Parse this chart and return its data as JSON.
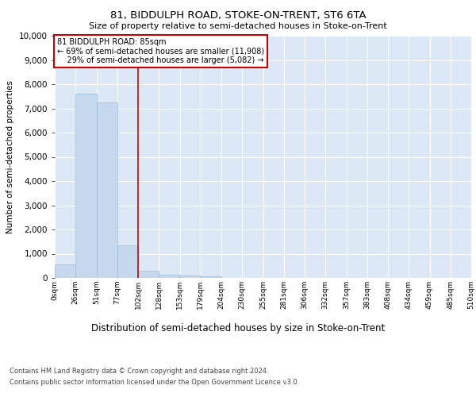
{
  "title": "81, BIDDULPH ROAD, STOKE-ON-TRENT, ST6 6TA",
  "subtitle": "Size of property relative to semi-detached houses in Stoke-on-Trent",
  "xlabel": "Distribution of semi-detached houses by size in Stoke-on-Trent",
  "ylabel": "Number of semi-detached properties",
  "footer_line1": "Contains HM Land Registry data © Crown copyright and database right 2024.",
  "footer_line2": "Contains public sector information licensed under the Open Government Licence v3.0.",
  "bin_labels": [
    "0sqm",
    "26sqm",
    "51sqm",
    "77sqm",
    "102sqm",
    "128sqm",
    "153sqm",
    "179sqm",
    "204sqm",
    "230sqm",
    "255sqm",
    "281sqm",
    "306sqm",
    "332sqm",
    "357sqm",
    "383sqm",
    "408sqm",
    "434sqm",
    "459sqm",
    "485sqm",
    "510sqm"
  ],
  "bar_values": [
    550,
    7600,
    7250,
    1350,
    300,
    140,
    100,
    75,
    0,
    0,
    0,
    0,
    0,
    0,
    0,
    0,
    0,
    0,
    0,
    0
  ],
  "bar_color": "#c5d8ee",
  "bar_edge_color": "#9bbcd8",
  "property_label": "81 BIDDULPH ROAD: 85sqm",
  "pct_smaller": 69,
  "count_smaller": 11908,
  "pct_larger": 29,
  "count_larger": 5082,
  "annotation_box_color": "#ffffff",
  "annotation_box_edge": "#cc0000",
  "vline_color": "#cc0000",
  "vline_bin_index": 3,
  "ylim": [
    0,
    10000
  ],
  "yticks": [
    0,
    1000,
    2000,
    3000,
    4000,
    5000,
    6000,
    7000,
    8000,
    9000,
    10000
  ],
  "plot_bg_color": "#dce8f5",
  "fig_bg_color": "#ffffff",
  "title_fontsize": 9.5,
  "subtitle_fontsize": 8,
  "ylabel_fontsize": 7.5,
  "xlabel_fontsize": 8.5,
  "ytick_fontsize": 7.5,
  "xtick_fontsize": 6.5,
  "footer_fontsize": 6,
  "annotation_fontsize": 7
}
